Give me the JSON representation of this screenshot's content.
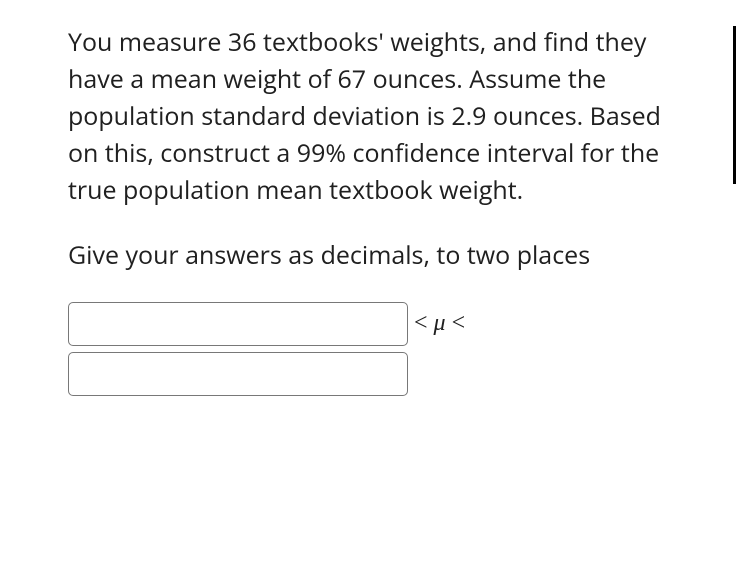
{
  "problem": {
    "text": "You measure 36 textbooks' weights, and find they have a mean weight of 67 ounces. Assume the population standard deviation is 2.9 ounces. Based on this, construct a 99% confidence interval for the true population mean textbook weight.",
    "instruction": "Give your answers as decimals, to two places",
    "sample_size": 36,
    "sample_mean": 67,
    "population_sd": 2.9,
    "confidence_level": "99%"
  },
  "answer": {
    "lower_value": "",
    "upper_value": "",
    "mu_expression": "< μ <"
  },
  "style": {
    "text_color": "#202020",
    "background": "#ffffff",
    "input_border": "#787878",
    "font_size_body": 25,
    "line_height": 1.48,
    "input_width": 340,
    "input_height": 44
  }
}
